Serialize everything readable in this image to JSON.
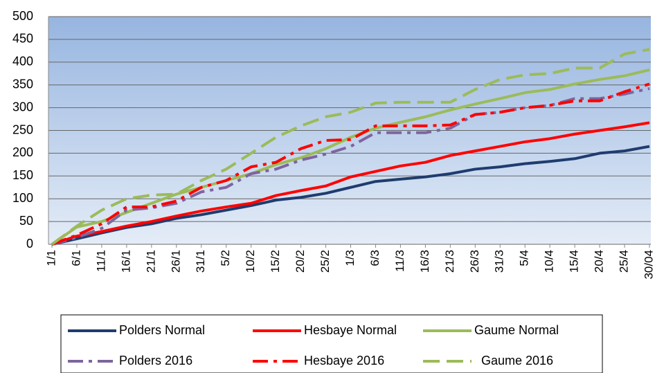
{
  "chart_data": {
    "type": "line",
    "categories": [
      "1/1",
      "6/1",
      "11/1",
      "16/1",
      "21/1",
      "26/1",
      "31/1",
      "5/2",
      "10/2",
      "15/2",
      "20/2",
      "25/2",
      "1/3",
      "6/3",
      "11/3",
      "16/3",
      "21/3",
      "26/3",
      "31/3",
      "5/4",
      "10/4",
      "15/4",
      "20/4",
      "25/4",
      "30/04"
    ],
    "series": [
      {
        "name": "Polders Normal",
        "color": "#1f3c6e",
        "line_style": "solid",
        "values": [
          0,
          12,
          25,
          37,
          45,
          57,
          65,
          75,
          85,
          97,
          103,
          112,
          125,
          138,
          143,
          148,
          155,
          165,
          170,
          177,
          182,
          188,
          200,
          205,
          215
        ]
      },
      {
        "name": "Hesbaye Normal",
        "color": "#ff0000",
        "line_style": "solid",
        "values": [
          0,
          18,
          28,
          40,
          50,
          62,
          73,
          82,
          90,
          107,
          118,
          128,
          148,
          160,
          172,
          180,
          195,
          205,
          215,
          225,
          232,
          242,
          250,
          258,
          267
        ]
      },
      {
        "name": "Gaume Normal",
        "color": "#9bbb59",
        "line_style": "solid",
        "values": [
          0,
          38,
          50,
          70,
          90,
          110,
          125,
          140,
          155,
          175,
          190,
          210,
          235,
          255,
          268,
          280,
          295,
          308,
          320,
          333,
          340,
          352,
          362,
          370,
          383
        ]
      },
      {
        "name": "Polders 2016",
        "color": "#7e649e",
        "line_style": "dash-dot",
        "values": [
          0,
          15,
          35,
          75,
          80,
          90,
          115,
          125,
          155,
          165,
          185,
          198,
          215,
          245,
          245,
          245,
          255,
          285,
          290,
          300,
          305,
          320,
          320,
          330,
          342
        ]
      },
      {
        "name": "Hesbaye 2016",
        "color": "#ff0000",
        "line_style": "dash-dot",
        "values": [
          0,
          20,
          45,
          82,
          82,
          95,
          125,
          140,
          170,
          180,
          210,
          228,
          230,
          260,
          260,
          260,
          262,
          285,
          290,
          300,
          305,
          315,
          315,
          335,
          352
        ]
      },
      {
        "name": "Gaume 2016",
        "color": "#9bbb59",
        "line_style": "dash",
        "values": [
          0,
          40,
          75,
          100,
          108,
          110,
          140,
          165,
          200,
          235,
          260,
          280,
          290,
          310,
          312,
          312,
          312,
          340,
          362,
          372,
          375,
          387,
          387,
          418,
          428
        ]
      }
    ],
    "ylim": [
      0,
      500
    ],
    "yticks": [
      0,
      50,
      100,
      150,
      200,
      250,
      300,
      350,
      400,
      450,
      500
    ],
    "grid": true,
    "legend": "bottom"
  }
}
